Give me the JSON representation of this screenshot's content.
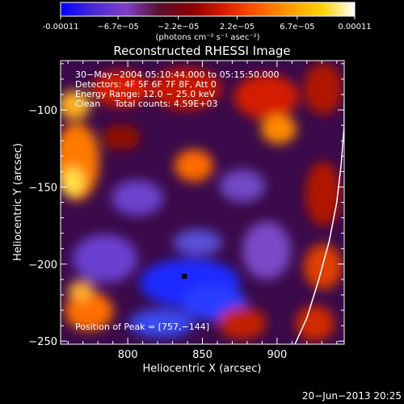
{
  "colorbar": {
    "tick_labels": [
      "-0.00011",
      "−6.7e−05",
      "−2.2e−05",
      "2.2e−05",
      "6.7e−05",
      "0.00011"
    ],
    "tick_values": [
      -0.00011,
      -6.7e-05,
      -2.2e-05,
      2.2e-05,
      6.7e-05,
      0.00011
    ],
    "unit_label": "(photons cm⁻² s⁻¹ asec⁻²)",
    "colormap_stops": [
      "#0000ff",
      "#4a2bd6",
      "#8040c8",
      "#5a1030",
      "#8b0000",
      "#d81b00",
      "#ff5a00",
      "#ff9a00",
      "#ffd200",
      "#ffffff"
    ]
  },
  "chart_data": {
    "type": "heatmap",
    "title": "Reconstructed RHESSI Image",
    "xlabel": "Heliocentric X (arcsec)",
    "ylabel": "Heliocentric Y (arcsec)",
    "xlim": [
      755,
      945
    ],
    "ylim": [
      -252,
      -68
    ],
    "xticks": [
      800,
      850,
      900
    ],
    "yticks": [
      -100,
      -150,
      -200,
      -250
    ],
    "info_lines": [
      "30−May−2004 05:10:44.000 to 05:15:50.000",
      "Detectors: 4F 5F 6F 7F 8F, Att 0",
      "Energy Range: 12.0 − 25.0 keV",
      "Clean     Total counts: 4.59E+03"
    ],
    "peak_label": "Position of Peak = [757,−144]",
    "peak_position": [
      757,
      -144
    ],
    "marker_point": [
      838,
      -208
    ],
    "limb_curve": [
      [
        912,
        -252
      ],
      [
        920,
        -235
      ],
      [
        928,
        -210
      ],
      [
        935,
        -185
      ],
      [
        940,
        -160
      ],
      [
        943,
        -135
      ],
      [
        945,
        -110
      ],
      [
        945,
        -95
      ]
    ]
  },
  "footer": {
    "timestamp": "20−Jun−2013 20:25"
  }
}
